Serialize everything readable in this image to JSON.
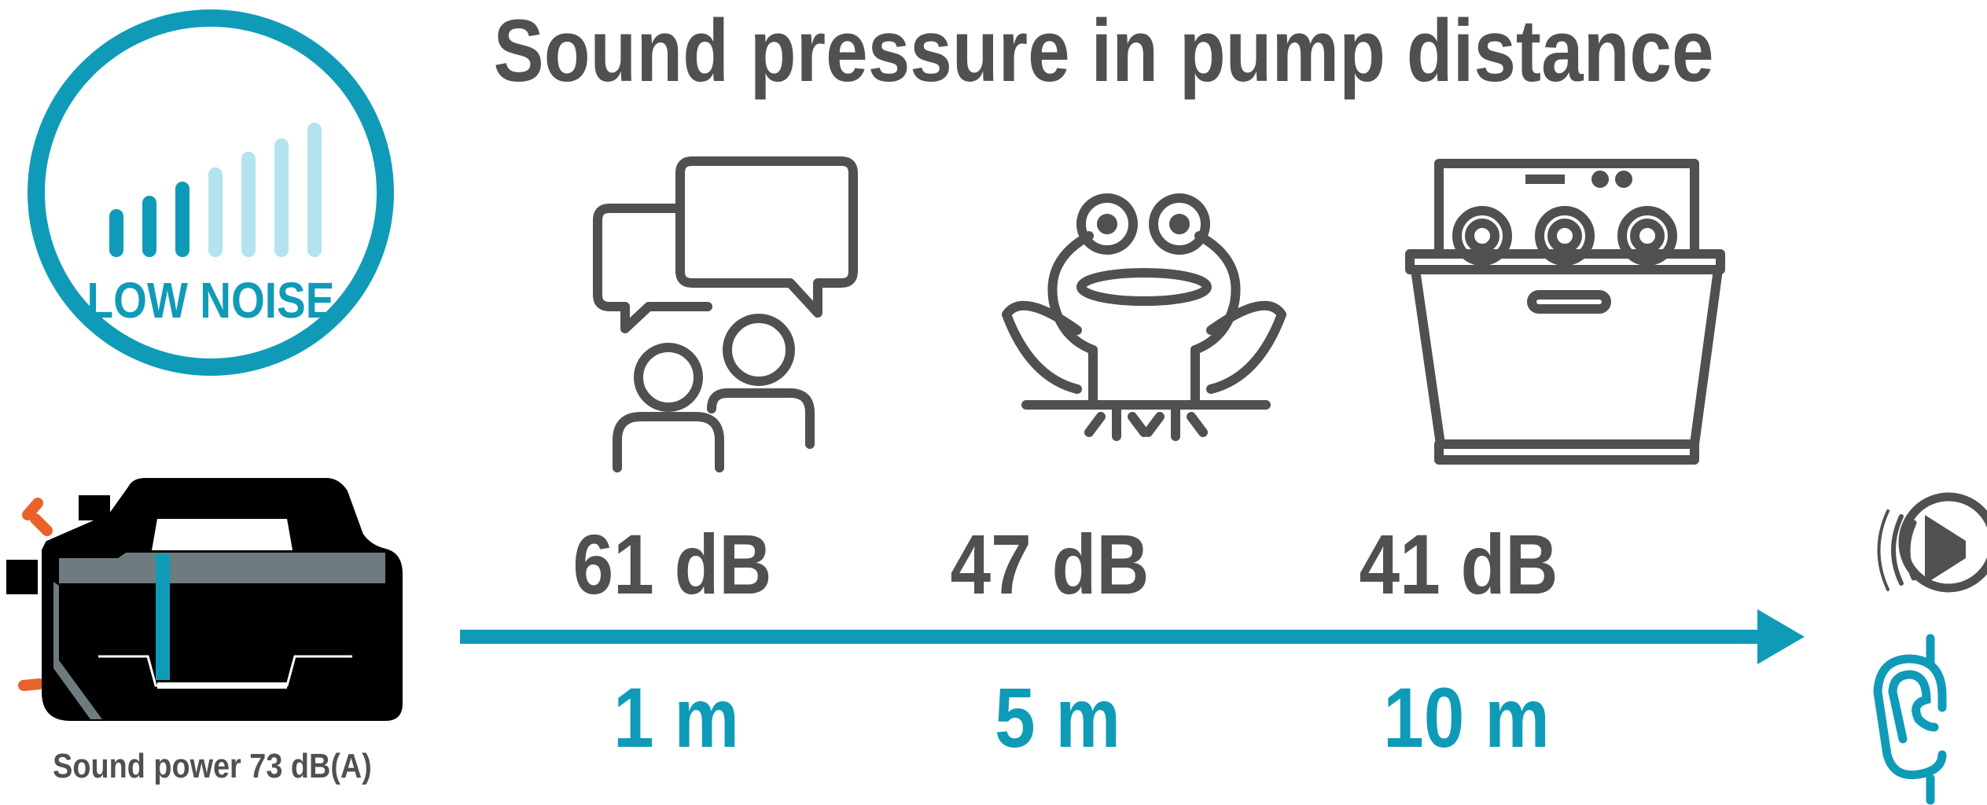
{
  "title": "Sound pressure in pump distance",
  "badge": {
    "label": "LOW NOISE",
    "icon": "volume-bars-icon",
    "bars_total": 8,
    "bars_active": 3
  },
  "pump": {
    "caption": "Sound power 73 dB(A)",
    "icon": "water-pump-icon"
  },
  "levels": [
    {
      "db": "61 dB",
      "distance": "1 m",
      "icon": "conversation-icon"
    },
    {
      "db": "47 dB",
      "distance": "5 m",
      "icon": "frog-icon"
    },
    {
      "db": "41 dB",
      "distance": "10 m",
      "icon": "dishwasher-icon"
    }
  ],
  "side_icons": [
    "speaker-icon",
    "ear-icon"
  ],
  "colors": {
    "text": "#505050",
    "accent": "#0f9bb8",
    "accent_light": "#b3e3ee",
    "pump_body": "#000000",
    "pump_trim": "#6e7c80",
    "valve": "#e8622a"
  }
}
